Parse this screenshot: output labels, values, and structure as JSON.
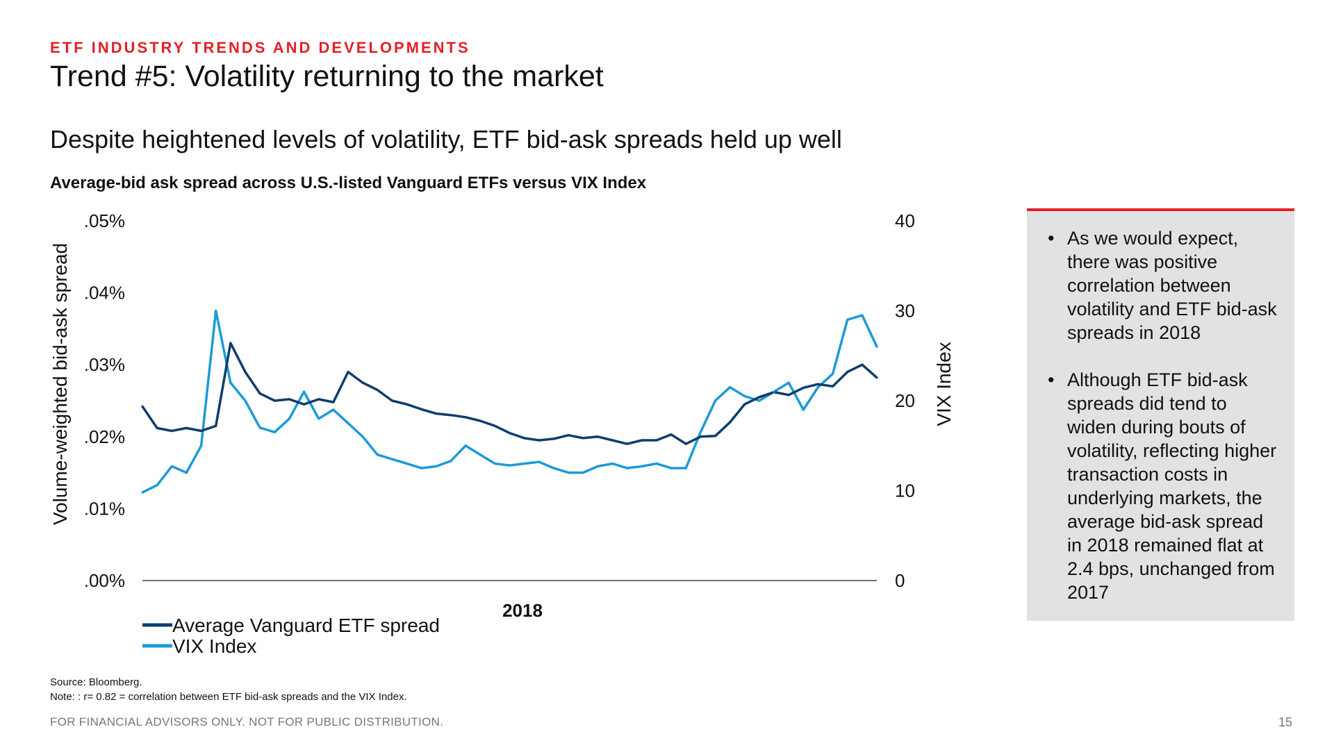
{
  "header": {
    "kicker": "ETF INDUSTRY TRENDS AND DEVELOPMENTS",
    "title": "Trend #5: Volatility returning to the market",
    "subtitle": "Despite heightened levels of volatility, ETF bid-ask spreads held up well",
    "chart_caption": "Average-bid ask spread across U.S.-listed Vanguard ETFs versus VIX Index"
  },
  "colors": {
    "accent": "#e41f26",
    "etf_series": "#0e3d6b",
    "vix_series": "#1d9ad6",
    "panel": "#e1e2e4"
  },
  "chart_data": {
    "type": "line",
    "title": "Average-bid ask spread across U.S.-listed Vanguard ETFs versus VIX Index",
    "xlabel": "2018",
    "ylabel": "Volume-weighted bid-ask spread",
    "y2label": "VIX Index",
    "ylim": [
      0,
      0.05
    ],
    "y2lim": [
      0,
      40
    ],
    "y_ticks": [
      ".00%",
      ".01%",
      ".02%",
      ".03%",
      ".04%",
      ".05%"
    ],
    "y2_ticks": [
      "0",
      "10",
      "20",
      "30",
      "40"
    ],
    "legend_position": "bottom-left",
    "grid": false,
    "x": [
      1,
      6,
      11,
      16,
      21,
      26,
      31,
      36,
      41,
      46,
      51,
      56,
      61,
      66,
      71,
      76,
      81,
      86,
      91,
      96,
      101,
      106,
      111,
      116,
      121,
      126,
      131,
      136,
      141,
      146,
      151,
      156,
      161,
      166,
      171,
      176,
      181,
      186,
      191,
      196,
      201,
      206,
      211,
      216,
      221,
      226,
      231,
      236,
      241,
      246,
      251
    ],
    "series": [
      {
        "name": "Average Vanguard ETF spread",
        "axis": "left",
        "values": [
          0.0242,
          0.0212,
          0.0208,
          0.0212,
          0.0208,
          0.0215,
          0.033,
          0.029,
          0.026,
          0.025,
          0.0252,
          0.0245,
          0.0252,
          0.0248,
          0.029,
          0.0275,
          0.0265,
          0.025,
          0.0245,
          0.0238,
          0.0232,
          0.023,
          0.0227,
          0.0222,
          0.0215,
          0.0205,
          0.0198,
          0.0195,
          0.0197,
          0.0202,
          0.0198,
          0.02,
          0.0195,
          0.019,
          0.0195,
          0.0195,
          0.0203,
          0.019,
          0.02,
          0.0201,
          0.022,
          0.0245,
          0.0255,
          0.0262,
          0.0258,
          0.0268,
          0.0273,
          0.027,
          0.029,
          0.03,
          0.0282
        ]
      },
      {
        "name": "VIX Index",
        "axis": "right",
        "values": [
          9.8,
          10.6,
          12.7,
          12.0,
          15.0,
          30.0,
          22.0,
          20.0,
          17.0,
          16.5,
          18.0,
          21.0,
          18.0,
          19.0,
          17.5,
          16.0,
          14.0,
          13.5,
          13.0,
          12.5,
          12.7,
          13.3,
          15.0,
          14.0,
          13.0,
          12.8,
          13.0,
          13.2,
          12.5,
          12.0,
          12.0,
          12.7,
          13.0,
          12.5,
          12.7,
          13.0,
          12.5,
          12.5,
          16.5,
          20.0,
          21.5,
          20.5,
          20.0,
          21.0,
          22.0,
          19.0,
          21.5,
          23.0,
          29.0,
          29.5,
          26.0
        ]
      }
    ]
  },
  "notes": {
    "bullets": [
      "As we would expect, there was positive correlation between volatility and ETF bid-ask spreads in 2018",
      "Although ETF bid-ask spreads did tend to widen during bouts of volatility, reflecting higher transaction costs in underlying markets, the average bid-ask spread in 2018 remained flat at 2.4 bps, unchanged from 2017"
    ]
  },
  "footer": {
    "source": "Source: Bloomberg.",
    "note": "Note: : r= 0.82 = correlation between ETF bid-ask spreads and the VIX Index.",
    "disclaimer": "FOR FINANCIAL ADVISORS ONLY. NOT FOR PUBLIC DISTRIBUTION.",
    "page_number": "15"
  }
}
